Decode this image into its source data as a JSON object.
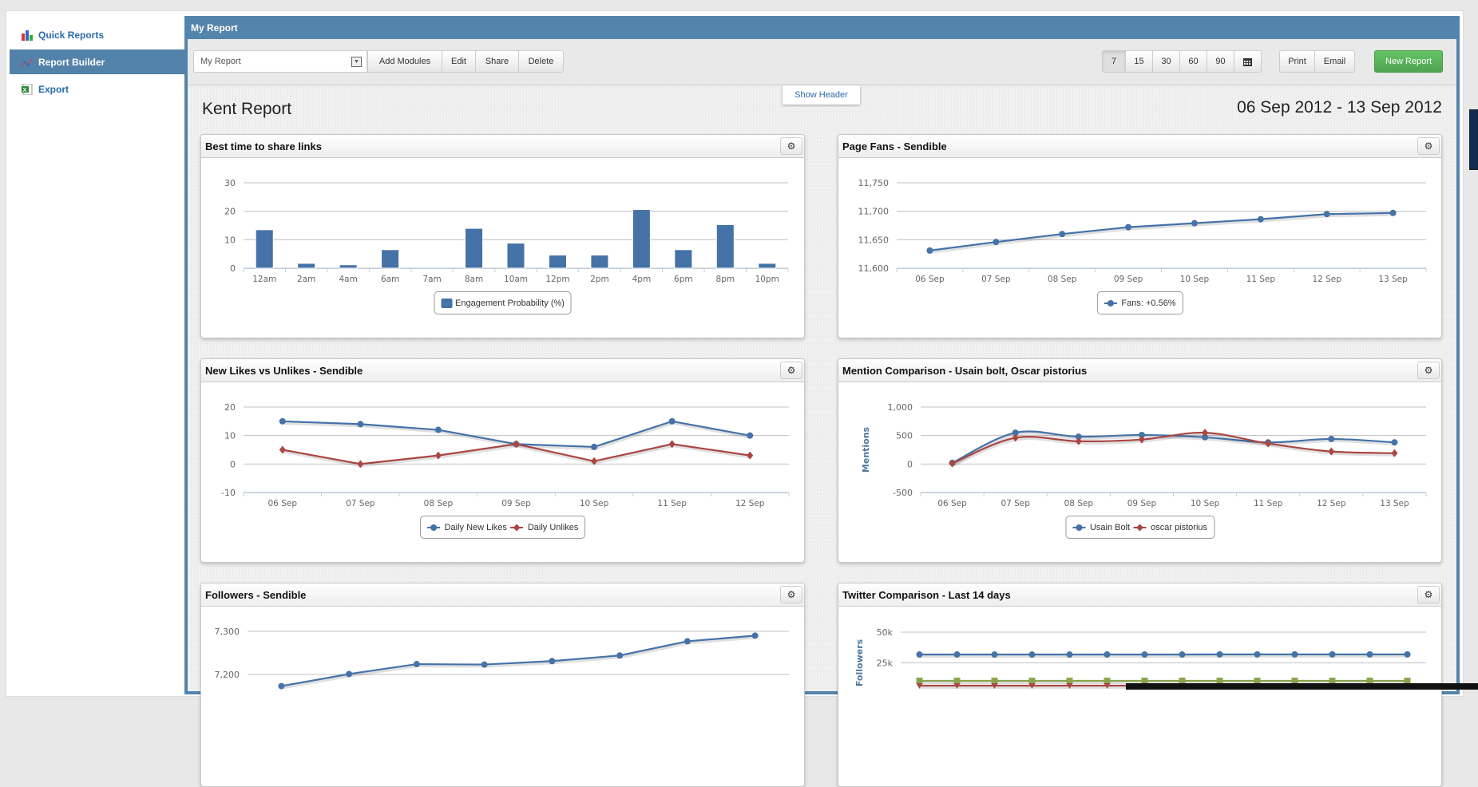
{
  "sidebar": {
    "items": [
      {
        "label": "Quick Reports",
        "icon": "bar-chart-icon"
      },
      {
        "label": "Report Builder",
        "icon": "line-chart-icon",
        "active": true
      },
      {
        "label": "Export",
        "icon": "excel-icon"
      }
    ]
  },
  "panel": {
    "title": "My Report"
  },
  "toolbar": {
    "report_select": "My Report",
    "buttons": [
      "Add Modules",
      "Edit",
      "Share",
      "Delete"
    ],
    "ranges": [
      "7",
      "15",
      "30",
      "60",
      "90"
    ],
    "active_range": "7",
    "print": "Print",
    "email": "Email",
    "new_report": "New Report"
  },
  "show_header": "Show Header",
  "report": {
    "title": "Kent Report",
    "date_range": "06 Sep 2012 - 13 Sep 2012"
  },
  "colors": {
    "blue": "#4572a7",
    "red": "#aa4643",
    "green": "#89a54e",
    "header": "#5384ab",
    "new_report": "#5bb75b"
  },
  "chart_data": [
    {
      "title": "Best time to share links",
      "type": "bar",
      "categories": [
        "12am",
        "2am",
        "4am",
        "6am",
        "7am",
        "8am",
        "10am",
        "12pm",
        "2pm",
        "4pm",
        "6pm",
        "8pm",
        "10pm"
      ],
      "series": [
        {
          "name": "Engagement Probability (%)",
          "color": "#4572a7",
          "values": [
            13.5,
            1.7,
            1.2,
            6.5,
            0,
            14,
            8.8,
            4.6,
            4.6,
            20.6,
            6.5,
            15.3,
            1.7
          ]
        }
      ],
      "ylim": [
        0,
        30
      ],
      "yticks": [
        0,
        10,
        20,
        30
      ],
      "ytick_labels": [
        "0",
        "10",
        "20",
        "30"
      ],
      "ylabel": ""
    },
    {
      "title": "Page Fans - Sendible",
      "type": "line",
      "categories": [
        "06 Sep",
        "07 Sep",
        "08 Sep",
        "09 Sep",
        "10 Sep",
        "11 Sep",
        "12 Sep",
        "13 Sep"
      ],
      "series": [
        {
          "name": "Fans: +0.56%",
          "color": "#4572a7",
          "marker": "circle",
          "values": [
            11631,
            11646,
            11660,
            11672,
            11679,
            11686,
            11695,
            11697
          ]
        }
      ],
      "ylim": [
        11600,
        11750
      ],
      "yticks": [
        11600,
        11650,
        11700,
        11750
      ],
      "ytick_labels": [
        "11,600",
        "11,650",
        "11,700",
        "11,750"
      ],
      "ylabel": ""
    },
    {
      "title": "New Likes vs Unlikes - Sendible",
      "type": "line",
      "categories": [
        "06 Sep",
        "07 Sep",
        "08 Sep",
        "09 Sep",
        "10 Sep",
        "11 Sep",
        "12 Sep"
      ],
      "series": [
        {
          "name": "Daily New Likes",
          "color": "#4572a7",
          "marker": "circle",
          "values": [
            15,
            14,
            12,
            7,
            6,
            15,
            10
          ]
        },
        {
          "name": "Daily Unlikes",
          "color": "#aa4643",
          "marker": "diamond",
          "values": [
            5,
            0,
            3,
            7,
            1,
            7,
            3
          ]
        }
      ],
      "ylim": [
        -10,
        20
      ],
      "yticks": [
        -10,
        0,
        10,
        20
      ],
      "ytick_labels": [
        "-10",
        "0",
        "10",
        "20"
      ],
      "ylabel": ""
    },
    {
      "title": "Mention Comparison - Usain bolt, Oscar pistorius",
      "type": "line",
      "smooth": true,
      "categories": [
        "06 Sep",
        "07 Sep",
        "08 Sep",
        "09 Sep",
        "10 Sep",
        "11 Sep",
        "12 Sep",
        "13 Sep"
      ],
      "series": [
        {
          "name": "Usain Bolt",
          "color": "#4572a7",
          "marker": "circle",
          "values": [
            20,
            550,
            480,
            510,
            470,
            380,
            440,
            380
          ]
        },
        {
          "name": "oscar pistorius",
          "color": "#aa4643",
          "marker": "diamond",
          "values": [
            10,
            460,
            400,
            430,
            550,
            360,
            220,
            190
          ]
        }
      ],
      "ylim": [
        -500,
        1000
      ],
      "yticks": [
        -500,
        0,
        500,
        1000
      ],
      "ytick_labels": [
        "-500",
        "0",
        "500",
        "1,000"
      ],
      "ylabel": "Mentions"
    },
    {
      "title": "Followers - Sendible",
      "type": "line",
      "categories": [
        "",
        "",
        "",
        "",
        "",
        "",
        "",
        ""
      ],
      "series": [
        {
          "name": "",
          "color": "#4572a7",
          "marker": "circle",
          "values": [
            7173,
            7201,
            7224,
            7223,
            7231,
            7244,
            7277,
            7290
          ]
        }
      ],
      "ylim": [
        7100,
        7300
      ],
      "yticks": [
        7200,
        7300
      ],
      "ytick_labels": [
        "7,200",
        "7,300"
      ],
      "ylabel": ""
    },
    {
      "title": "Twitter Comparison - Last 14 days",
      "type": "line",
      "categories": [
        "",
        "",
        "",
        "",
        "",
        "",
        "",
        "",
        "",
        "",
        "",
        "",
        "",
        ""
      ],
      "series": [
        {
          "name": "",
          "color": "#4572a7",
          "marker": "circle",
          "values": [
            31800,
            31800,
            31800,
            31800,
            31800,
            31800,
            31800,
            31800,
            31900,
            31900,
            31900,
            31900,
            31900,
            31900
          ]
        },
        {
          "name": "",
          "color": "#89a54e",
          "marker": "square",
          "values": [
            10400,
            10400,
            10400,
            10400,
            10400,
            10400,
            10400,
            10400,
            10400,
            10400,
            10400,
            10400,
            10400,
            10400
          ]
        },
        {
          "name": "",
          "color": "#aa4643",
          "marker": "triangle",
          "values": [
            6500,
            6500,
            6500,
            6500,
            6500,
            6500,
            6500,
            6500,
            6500,
            6500,
            6500,
            6500,
            6500,
            6500
          ]
        }
      ],
      "ylim": [
        0,
        50000
      ],
      "yticks": [
        25000,
        50000
      ],
      "ytick_labels": [
        "25k",
        "50k"
      ],
      "ylabel": "Followers"
    }
  ]
}
